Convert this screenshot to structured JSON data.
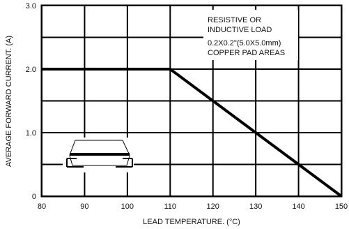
{
  "chart_data": {
    "type": "line",
    "title": "",
    "xlabel": "LEAD TEMPERATURE. (°C)",
    "ylabel": "AVERAGE FORWARD CURRENT. (A)",
    "xlim": [
      80,
      150
    ],
    "ylim": [
      0,
      3.0
    ],
    "x_ticks": [
      80,
      90,
      100,
      110,
      120,
      130,
      140,
      150
    ],
    "y_ticks": [
      0,
      1.0,
      2.0,
      3.0
    ],
    "x_tick_labels": [
      "80",
      "90",
      "100",
      "110",
      "120",
      "130",
      "140",
      "150"
    ],
    "y_tick_labels": [
      "0",
      "1.0",
      "2.0",
      "3.0"
    ],
    "grid": true,
    "series": [
      {
        "x": [
          80,
          110,
          150
        ],
        "y": [
          2.0,
          2.0,
          0
        ]
      }
    ],
    "annotation_lines": [
      "RESISTIVE OR",
      "INDUCTIVE LOAD",
      "0.2X0.2\"(5.0X5.0mm)",
      "COPPER PAD AREAS"
    ],
    "inset_icon": "smd-package-on-copper-pads-icon"
  }
}
